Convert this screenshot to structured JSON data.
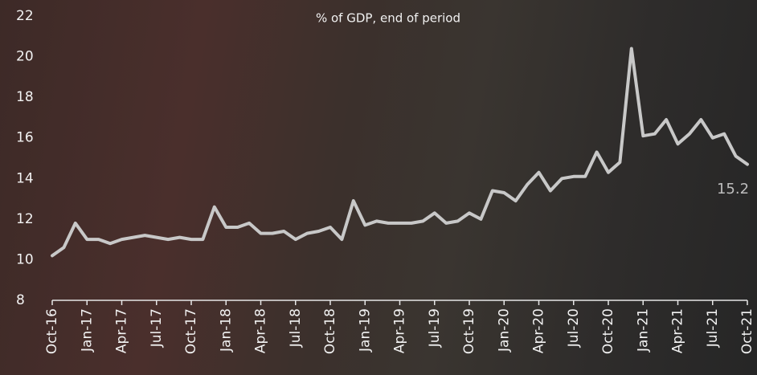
{
  "chart_data": {
    "type": "line",
    "subtitle": "% of GDP, end of period",
    "categories": [
      "Oct-16",
      null,
      null,
      "Jan-17",
      null,
      null,
      "Apr-17",
      null,
      null,
      "Jul-17",
      null,
      null,
      "Oct-17",
      null,
      null,
      "Jan-18",
      null,
      null,
      "Apr-18",
      null,
      null,
      "Jul-18",
      null,
      null,
      "Oct-18",
      null,
      null,
      "Jan-19",
      null,
      null,
      "Apr-19",
      null,
      null,
      "Jul-19",
      null,
      null,
      "Oct-19",
      null,
      null,
      "Jan-20",
      null,
      null,
      "Apr-20",
      null,
      null,
      "Jul-20",
      null,
      null,
      "Oct-20",
      null,
      null,
      "Jan-21",
      null,
      null,
      "Apr-21",
      null,
      null,
      "Jul-21",
      null,
      null,
      "Oct-21"
    ],
    "values": [
      10.2,
      10.6,
      11.8,
      11.0,
      11.0,
      10.8,
      11.0,
      11.1,
      11.2,
      11.1,
      11.0,
      11.1,
      11.0,
      11.0,
      12.6,
      11.6,
      11.6,
      11.8,
      11.3,
      11.3,
      11.4,
      11.0,
      11.3,
      11.4,
      11.6,
      11.0,
      12.9,
      11.7,
      11.9,
      11.8,
      11.8,
      11.8,
      11.9,
      12.3,
      11.8,
      11.9,
      12.3,
      12.0,
      13.4,
      13.3,
      12.9,
      13.7,
      14.3,
      13.4,
      14.0,
      14.1,
      14.1,
      15.3,
      14.3,
      14.8,
      20.4,
      16.1,
      16.2,
      16.9,
      15.7,
      16.2,
      16.9,
      16.0,
      16.2,
      15.1,
      14.7
    ],
    "color": "#c8c8c8",
    "ylim": [
      8,
      22
    ],
    "yticks": [
      8,
      10,
      12,
      14,
      16,
      18,
      20,
      22
    ],
    "annotations": [
      {
        "text": "15.2"
      }
    ]
  }
}
